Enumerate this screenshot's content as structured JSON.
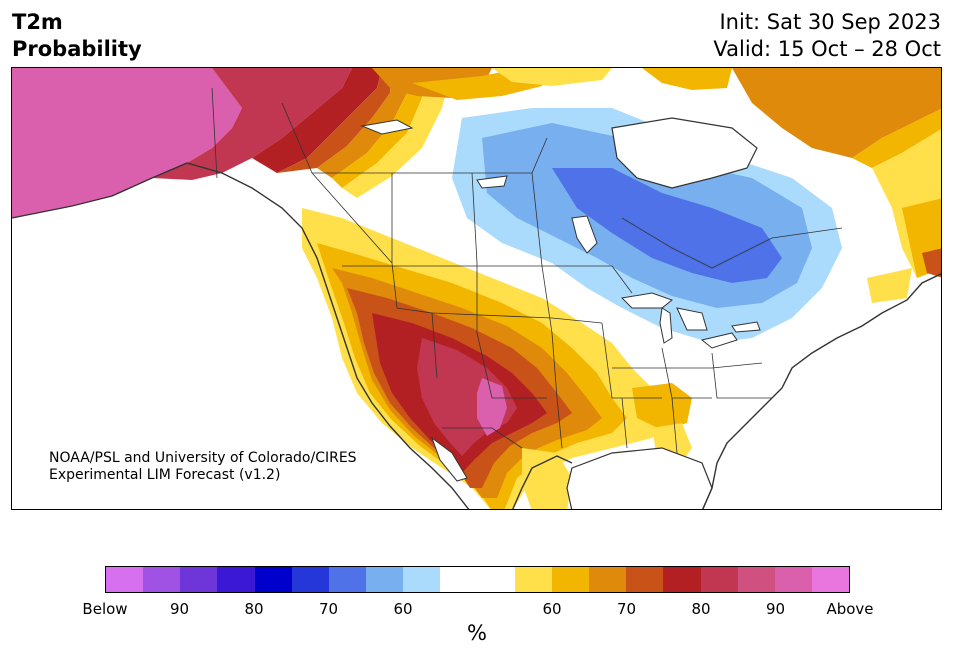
{
  "title": {
    "line1": "T2m",
    "line2": "Probability"
  },
  "init": "Init: Sat 30 Sep 2023",
  "valid": "Valid: 15 Oct – 28 Oct",
  "credit": {
    "line1": "NOAA/PSL and University of Colorado/CIRES",
    "line2": "Experimental LIM Forecast (v1.2)"
  },
  "colorbar": {
    "colors": [
      "#d670ee",
      "#9f52e4",
      "#6e35d8",
      "#3a18d6",
      "#0000cc",
      "#2637da",
      "#4f72e8",
      "#77afef",
      "#aadafc",
      "#ffffff",
      "#ffffff",
      "#ffe04a",
      "#f2b500",
      "#e08a0b",
      "#c95218",
      "#b32024",
      "#c13650",
      "#d05080",
      "#da60ad",
      "#e975df"
    ],
    "ticks": [
      "Below",
      "90",
      "80",
      "70",
      "60",
      "60",
      "70",
      "80",
      "90",
      "Above"
    ],
    "unit": "%"
  },
  "map_colors": {
    "above_pink": "#da60ad",
    "above_rose": "#c13650",
    "above_red": "#b32024",
    "above_rust": "#c95218",
    "above_orange": "#e08a0b",
    "above_gold": "#f2b500",
    "above_yellow": "#ffe04a",
    "below_light": "#aadafc",
    "below_mid": "#77afef",
    "below_dark": "#4f72e8"
  }
}
